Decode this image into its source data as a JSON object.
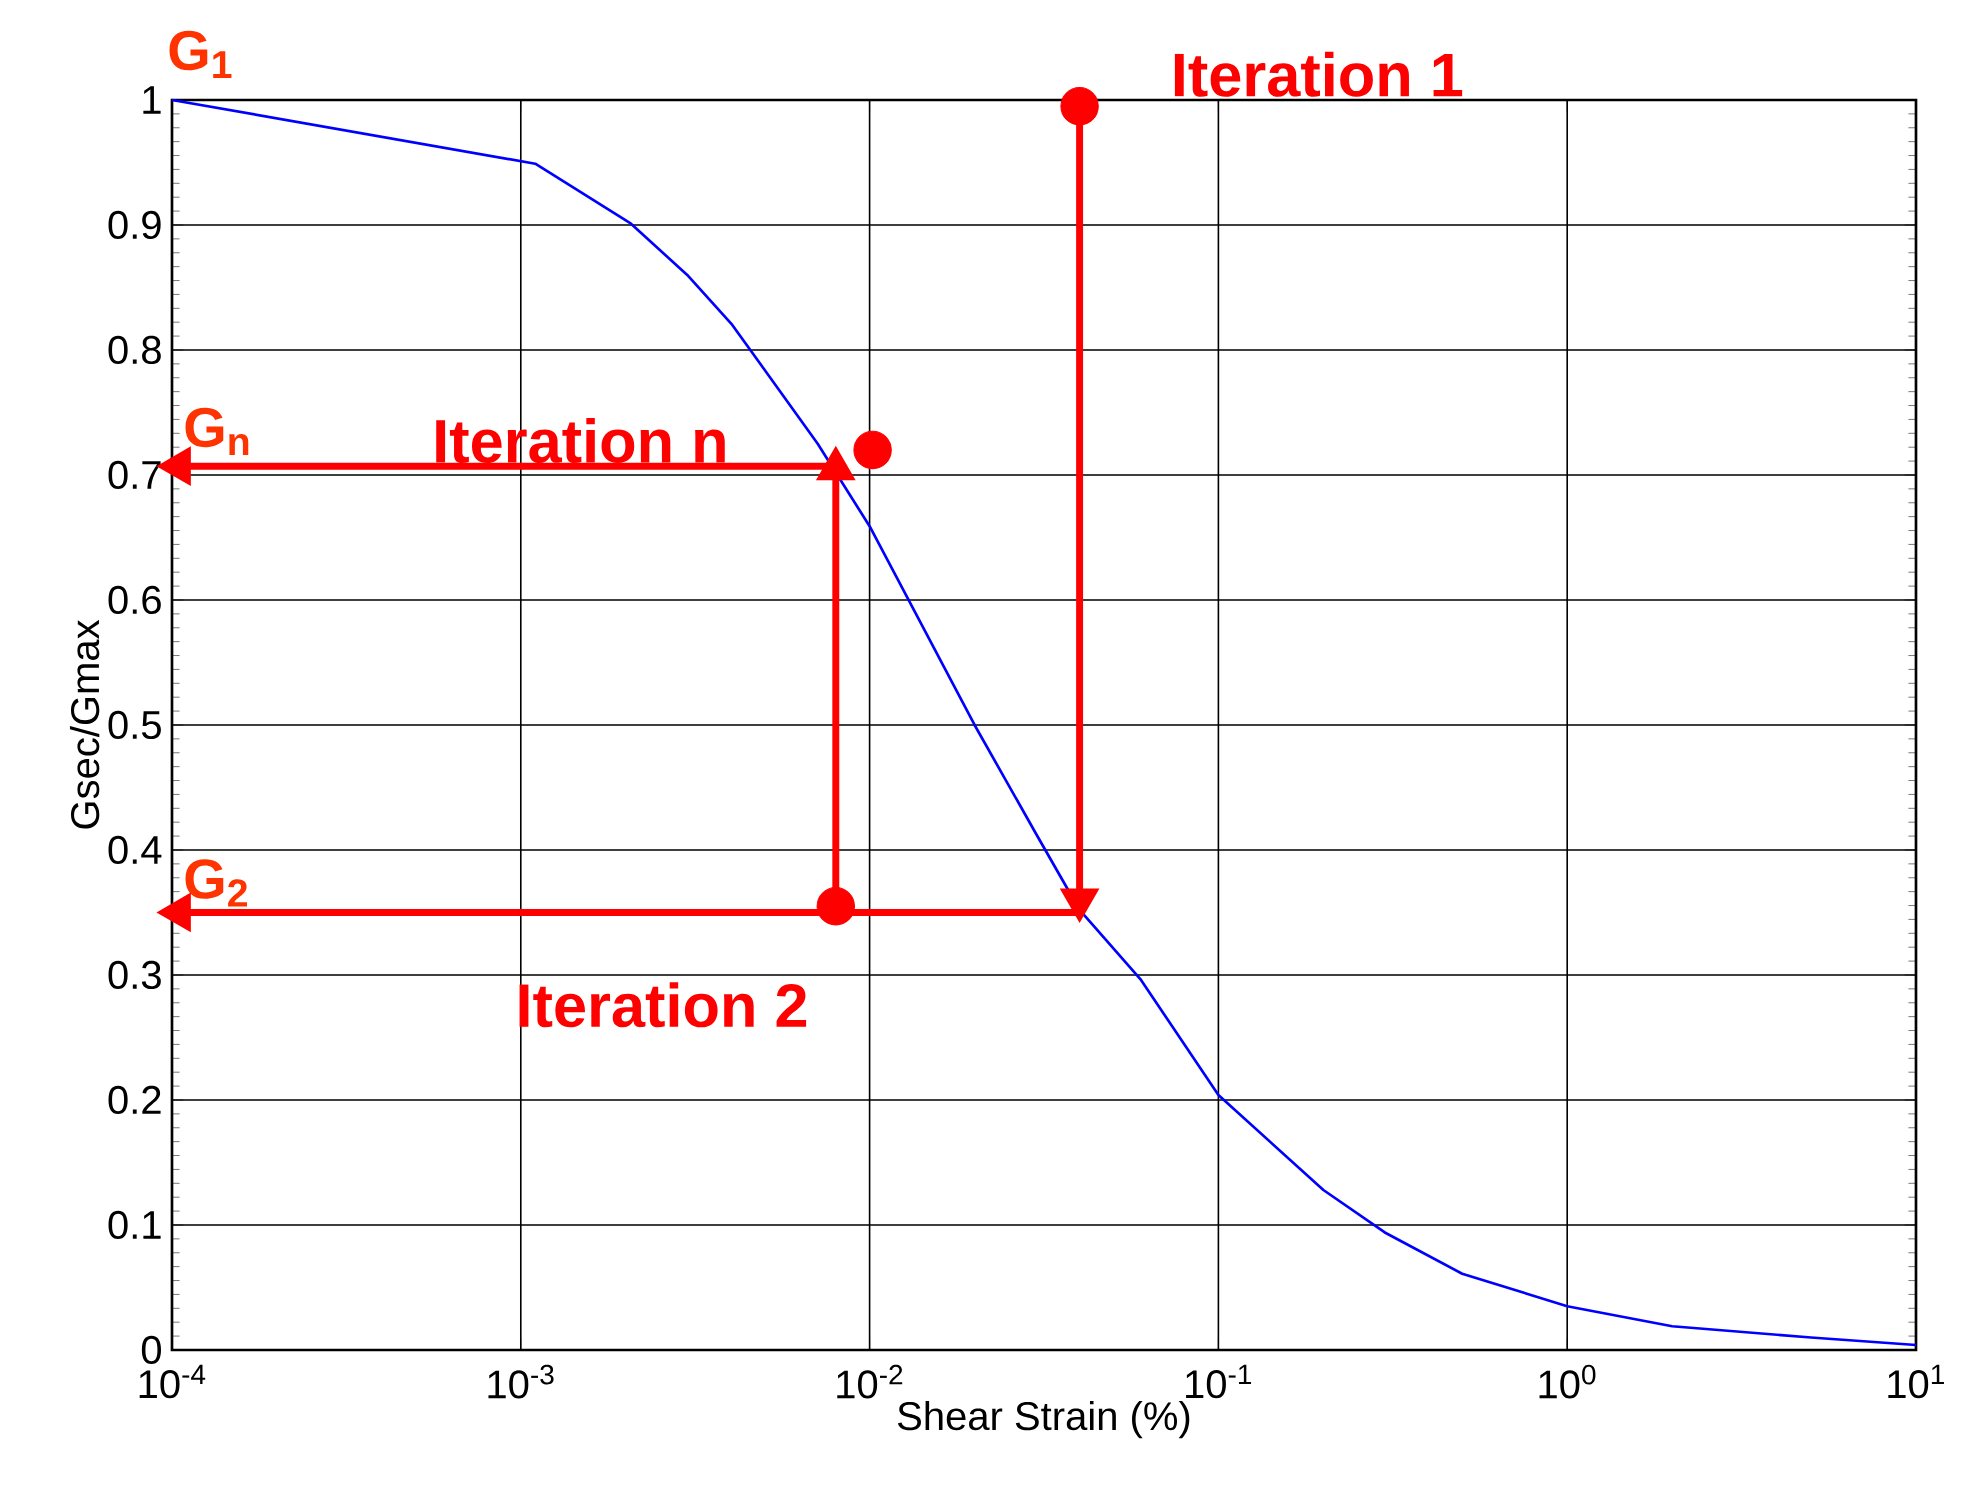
{
  "chart_data": {
    "type": "line",
    "xlabel": "Shear Strain (%)",
    "ylabel": "Gsec/Gmax",
    "log": "x",
    "grid": true,
    "xlim": [
      0.0001,
      10
    ],
    "ylim": [
      0,
      1
    ],
    "xticks": [
      {
        "value": 0.0001,
        "label": "10$^{-4}$"
      },
      {
        "value": 0.001,
        "label": "10$^{-3}$"
      },
      {
        "value": 0.01,
        "label": "10$^{-2}$"
      },
      {
        "value": 0.1,
        "label": "10$^{-1}$"
      },
      {
        "value": 1,
        "label": "10$^{0}$"
      },
      {
        "value": 10,
        "label": "10$^{1}$"
      }
    ],
    "yticks": [
      0,
      0.1,
      0.2,
      0.3,
      0.4,
      0.5,
      0.6,
      0.7,
      0.8,
      0.9,
      1
    ],
    "series": [
      {
        "type": "line",
        "color": "#0000ff",
        "x": [
          0.0001,
          0.0011,
          0.00207,
          0.003,
          0.00404,
          0.0071,
          0.01,
          0.02,
          0.03,
          0.04,
          0.06,
          0.1,
          0.2,
          0.3,
          0.5,
          1,
          2,
          5,
          10
        ],
        "values": [
          1,
          0.949,
          0.901,
          0.86,
          0.82,
          0.725,
          0.659,
          0.5,
          0.413,
          0.352,
          0.296,
          0.204,
          0.128,
          0.094,
          0.061,
          0.035,
          0.019,
          0.01,
          0.004
        ]
      },
      {
        "type": "line",
        "color": "#ff0000",
        "x": [
          0.04,
          0.04
        ],
        "values": [
          0.995,
          0.36
        ]
      },
      {
        "type": "line",
        "color": "#ff0000",
        "x": [
          0.04,
          0.000105
        ],
        "values": [
          0.35,
          0.35
        ]
      },
      {
        "type": "line",
        "color": "#ff0000",
        "x": [
          0.008,
          0.008
        ],
        "values": [
          0.35,
          0.705
        ]
      },
      {
        "type": "line",
        "color": "#ff0000",
        "x": [
          0.0079,
          0.000105
        ],
        "values": [
          0.707,
          0.707
        ]
      },
      {
        "type": "scatter",
        "color": "#ff0000",
        "marker": "circle",
        "x": [
          0.04,
          0.008,
          0.0102
        ],
        "values": [
          0.995,
          0.355,
          0.72
        ]
      }
    ],
    "annotations": [
      {
        "text": "G$_{1}$",
        "x": 0.0001,
        "y": 1
      },
      {
        "text": "Iteration 1",
        "x": 0.04,
        "y": 0.995
      },
      {
        "text": "G$_{n}$",
        "x": 0.0001,
        "y": 0.707
      },
      {
        "text": "Iteration n",
        "x": 0.008,
        "y": 0.707
      },
      {
        "text": "G$_{2}$",
        "x": 0.0001,
        "y": 0.35
      },
      {
        "text": "Iteration 2",
        "x": 0.008,
        "y": 0.35
      }
    ]
  }
}
